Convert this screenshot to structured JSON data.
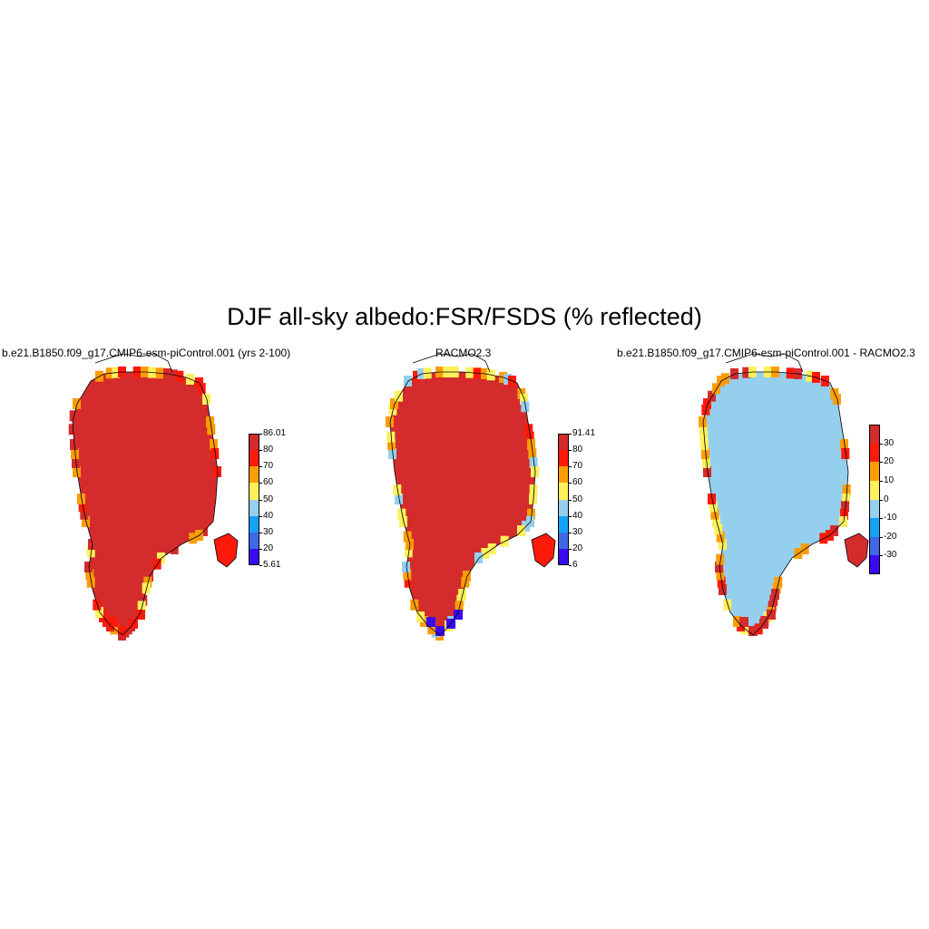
{
  "title": "DJF all-sky albedo:FSR/FSDS (% reflected)",
  "colors": {
    "c1": "#3a0bf0",
    "c2": "#4067e6",
    "c3": "#13a2f7",
    "c4": "#95cfee",
    "c5": "#fef05b",
    "c6": "#fd9d06",
    "c7": "#fe1a0b",
    "c8": "#d42c2c",
    "coast": "#000000"
  },
  "panels": [
    {
      "id": "model",
      "title": "b.e21.B1850.f09_g17.CMIP6-esm-piControl.001 (yrs 2-100)",
      "colorbar": {
        "labels": [
          "86.01",
          "80",
          "70",
          "60",
          "50",
          "40",
          "30",
          "20",
          "5.61"
        ],
        "colors": [
          "#d42c2c",
          "#fe1a0b",
          "#fd9d06",
          "#fef05b",
          "#95cfee",
          "#13a2f7",
          "#4067e6",
          "#3a0bf0"
        ]
      },
      "field": {
        "interior": "#d42c2c",
        "edge": [
          "#fe1a0b",
          "#fd9d06",
          "#fef05b",
          "#d42c2c"
        ],
        "south_tip": "#fe1a0b"
      }
    },
    {
      "id": "obs",
      "title": "RACMO2.3",
      "colorbar": {
        "labels": [
          "91.41",
          "80",
          "70",
          "60",
          "50",
          "40",
          "30",
          "20",
          "6"
        ],
        "colors": [
          "#d42c2c",
          "#fe1a0b",
          "#fd9d06",
          "#fef05b",
          "#95cfee",
          "#13a2f7",
          "#4067e6",
          "#3a0bf0"
        ]
      },
      "field": {
        "interior": "#d42c2c",
        "edge": [
          "#fe1a0b",
          "#fd9d06",
          "#fef05b",
          "#95cfee"
        ],
        "south_tip": "#3a0bf0"
      }
    },
    {
      "id": "diff",
      "title": "b.e21.B1850.f09_g17.CMIP6-esm-piControl.001 - RACMO2.3",
      "colorbar": {
        "labels": [
          "30",
          "20",
          "10",
          "0",
          "-10",
          "-20",
          "-30"
        ],
        "colors": [
          "#d42c2c",
          "#fe1a0b",
          "#fd9d06",
          "#fef05b",
          "#95cfee",
          "#13a2f7",
          "#4067e6",
          "#3a0bf0"
        ]
      },
      "field": {
        "interior": "#95cfee",
        "edge": [
          "#d42c2c",
          "#fe1a0b",
          "#fd9d06",
          "#fef05b"
        ],
        "south_tip": "#d42c2c"
      }
    }
  ]
}
